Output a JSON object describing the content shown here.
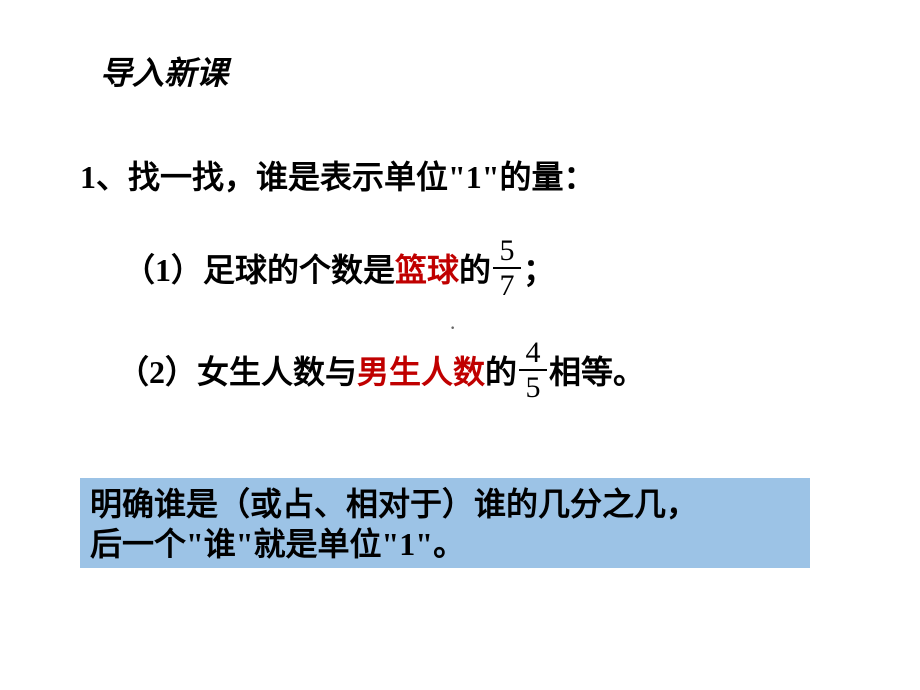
{
  "title": "导入新课",
  "heading": "1、找一找，谁是表示单位\"1\"的量：",
  "problems": {
    "p1": {
      "prefix": "（1）足球的个数是",
      "highlight": "篮球",
      "suffix1": "的 ",
      "fraction": {
        "num": "5",
        "den": "7"
      },
      "suffix2": "；"
    },
    "p2": {
      "prefix": "（2）女生人数与",
      "highlight": "男生人数",
      "suffix1": "的 ",
      "fraction": {
        "num": "4",
        "den": "5"
      },
      "suffix2": " 相等。"
    }
  },
  "center_dot": "·",
  "summary": {
    "line1": "明确谁是（或占、相对于）谁的几分之几，",
    "line2": "后一个\"谁\"就是单位\"1\"。"
  },
  "colors": {
    "highlight": "#c00000",
    "summary_bg": "#9cc3e6",
    "text": "#000000",
    "page_bg": "#ffffff"
  }
}
